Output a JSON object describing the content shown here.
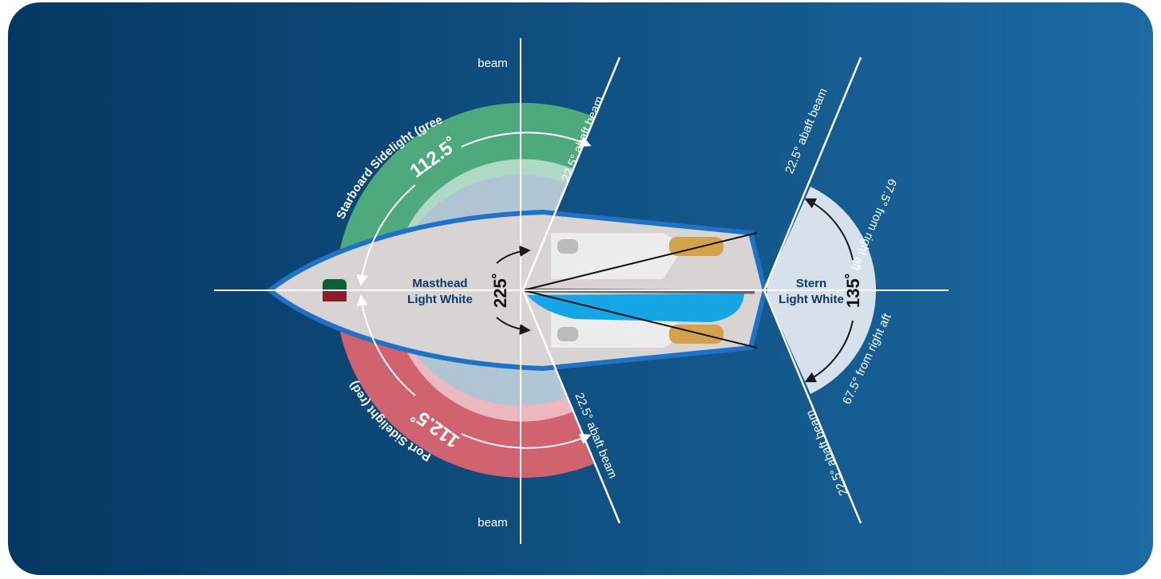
{
  "colors": {
    "bg_start": "#053761",
    "bg_end": "#1b6aa3",
    "green": "#0b8a4a",
    "red": "#c0283a",
    "hull_outline": "#1e73c7",
    "hull_fill": "#d9d4d4",
    "accent_blue": "#16a6e6",
    "wood": "#d2a24c",
    "label_navy": "#0b3a6a"
  },
  "labels": {
    "beam_top": "beam",
    "beam_bottom": "beam",
    "starboard": "Starboard Sidelight (green)",
    "port": "Port Sidelight (red)",
    "starboard_angle": "112.5˚",
    "port_angle": "112.5˚",
    "masthead_line1": "Masthead",
    "masthead_line2": "Light White",
    "masthead_angle": "225˚",
    "stern_line1": "Stern",
    "stern_line2": "Light White",
    "stern_angle": "135˚",
    "abaft_1": "22.5° abaft beam",
    "abaft_2": "22.5° abaft beam",
    "abaft_3": "22.5° abaft beam",
    "abaft_4": "22.5° abaft beam",
    "aft_1": "67.5° from right aft",
    "aft_2": "67.5° from right aft"
  }
}
